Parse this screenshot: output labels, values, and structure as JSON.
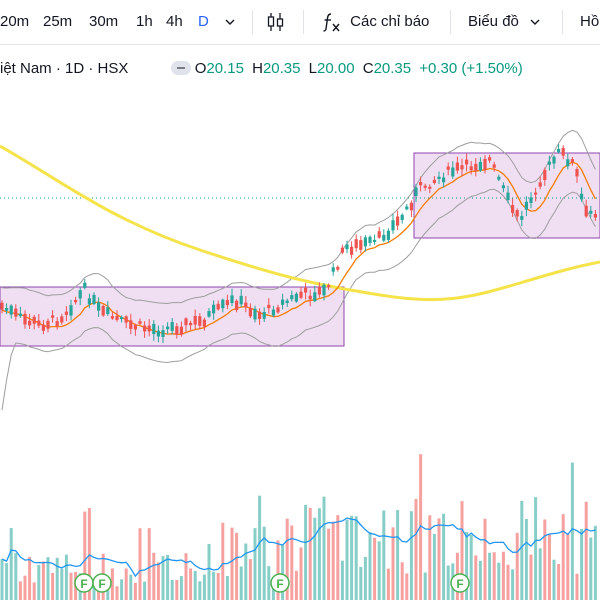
{
  "toolbar": {
    "intervals": [
      "20m",
      "25m",
      "30m",
      "1h",
      "4h",
      "D"
    ],
    "active_interval": "D",
    "dropdown_icon": "chevron-down-icon",
    "candles_icon": "candles-icon",
    "indicators_icon": "fx-icon",
    "indicators_label": "Các chỉ báo",
    "chart_type_label": "Biểu đồ",
    "next_label": "Hồ"
  },
  "legend": {
    "symbol_text": "iệt Nam · 1D · HSX",
    "o_label": "O",
    "o_value": "20.15",
    "h_label": "H",
    "h_value": "20.35",
    "l_label": "L",
    "l_value": "20.00",
    "c_label": "C",
    "c_value": "20.35",
    "change": "+0.30 (+1.50%)"
  },
  "colors": {
    "up": "#26a69a",
    "down": "#ef5350",
    "ma_long": "#f5e34a",
    "ma_short": "#f57c00",
    "bollinger": "#9e9e9e",
    "box_fill": "rgba(186,104,200,0.22)",
    "box_border": "#8e44ad",
    "volume_ma": "#2196f3",
    "earnings_marker": "#4caf50"
  },
  "chart_data": {
    "type": "candlestick",
    "earnings_markers": [
      "F",
      "F",
      "F",
      "F"
    ],
    "price_range_visible": {
      "low": 18.5,
      "high": 21.8
    }
  }
}
